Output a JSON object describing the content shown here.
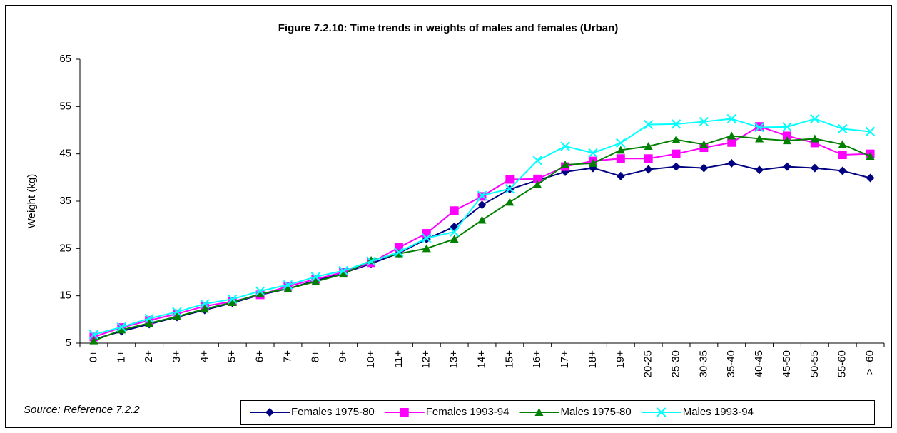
{
  "chart_data": {
    "type": "line",
    "title": "Figure 7.2.10: Time trends in weights of males and females (Urban)",
    "y_label": "Weight (kg)",
    "source": "Source: Reference 7.2.2",
    "categories": [
      "0+",
      "1+",
      "2+",
      "3+",
      "4+",
      "5+",
      "6+",
      "7+",
      "8+",
      "9+",
      "10+",
      "11+",
      "12+",
      "13+",
      "14+",
      "15+",
      "16+",
      "17+",
      "18+",
      "19+",
      "20-25",
      "25-30",
      "30-35",
      "35-40",
      "40-45",
      "45-50",
      "50-55",
      "55-60",
      ">=60"
    ],
    "series": [
      {
        "name": "Females 1975-80",
        "color": "#000080",
        "marker": "diamond",
        "values": [
          5.8,
          7.5,
          9,
          10.5,
          12,
          13.5,
          15.2,
          16.5,
          18.2,
          19.8,
          21.8,
          24,
          27,
          29.6,
          34.2,
          37.5,
          39.4,
          41.2,
          42,
          40.3,
          41.7,
          42.3,
          42,
          43,
          41.6,
          42.3,
          42,
          41.4,
          39.9
        ]
      },
      {
        "name": "Females 1993-94",
        "color": "#ff00ff",
        "marker": "square",
        "values": [
          6.3,
          8.3,
          9.8,
          11.2,
          12.8,
          13.8,
          15.2,
          17,
          18.5,
          20,
          22,
          25.2,
          28.2,
          33,
          36,
          39.6,
          39.7,
          42.3,
          43.5,
          44,
          44,
          45,
          46.3,
          47.4,
          50.8,
          48.8,
          47.3,
          44.8,
          45
        ]
      },
      {
        "name": "Males 1975-80",
        "color": "#008000",
        "marker": "triangle",
        "values": [
          5.5,
          7.8,
          9.2,
          10.6,
          12.2,
          13.6,
          15.4,
          16.5,
          18,
          19.6,
          22.5,
          23.9,
          25,
          27,
          31,
          34.8,
          38.5,
          42.7,
          43,
          45.8,
          46.6,
          48,
          47,
          48.8,
          48.2,
          47.8,
          48.2,
          47,
          44.5
        ]
      },
      {
        "name": "Males 1993-94",
        "color": "#00ffff",
        "marker": "x",
        "values": [
          6.8,
          8.4,
          10.2,
          11.6,
          13.3,
          14.3,
          16,
          17.3,
          19,
          20.3,
          22.3,
          24.2,
          27.2,
          28.5,
          36.2,
          37.6,
          43.6,
          46.6,
          45.2,
          47.3,
          51.2,
          51.3,
          51.8,
          52.4,
          50.6,
          50.7,
          52.4,
          50.3,
          49.7
        ]
      }
    ],
    "ylim": [
      5,
      65
    ],
    "yticks": [
      5,
      15,
      25,
      35,
      45,
      55,
      65
    ],
    "grid": false,
    "legend": "bottom"
  }
}
